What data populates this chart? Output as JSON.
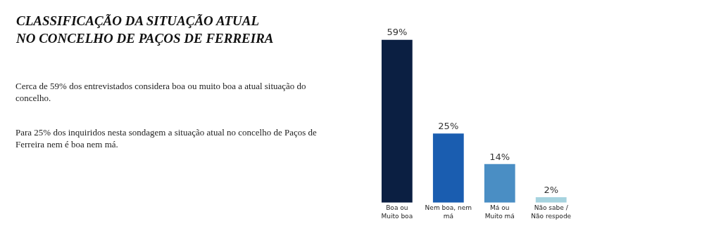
{
  "chart_data": {
    "type": "bar",
    "title": "CLASSIFICAÇÃO DA SITUAÇÃO ATUAL\nNO CONCELHO DE PAÇOS DE FERREIRA",
    "annotations": [
      "Cerca de 59% dos entrevistados considera boa ou muito boa a atual situação do concelho.",
      "Para 25% dos inquiridos nesta sondagem a situação atual no concelho de Paços de Ferreira nem é boa nem má."
    ],
    "categories": [
      "Boa ou\nMuito boa",
      "Nem boa, nem\nmá",
      "Má ou\nMuito má",
      "Não sabe /\nNão respode"
    ],
    "values": [
      59,
      25,
      14,
      2
    ],
    "value_labels": [
      "59%",
      "25%",
      "14%",
      "2%"
    ],
    "colors": [
      "#0b1f42",
      "#1a5db0",
      "#4a8ec4",
      "#a6d3df"
    ]
  }
}
